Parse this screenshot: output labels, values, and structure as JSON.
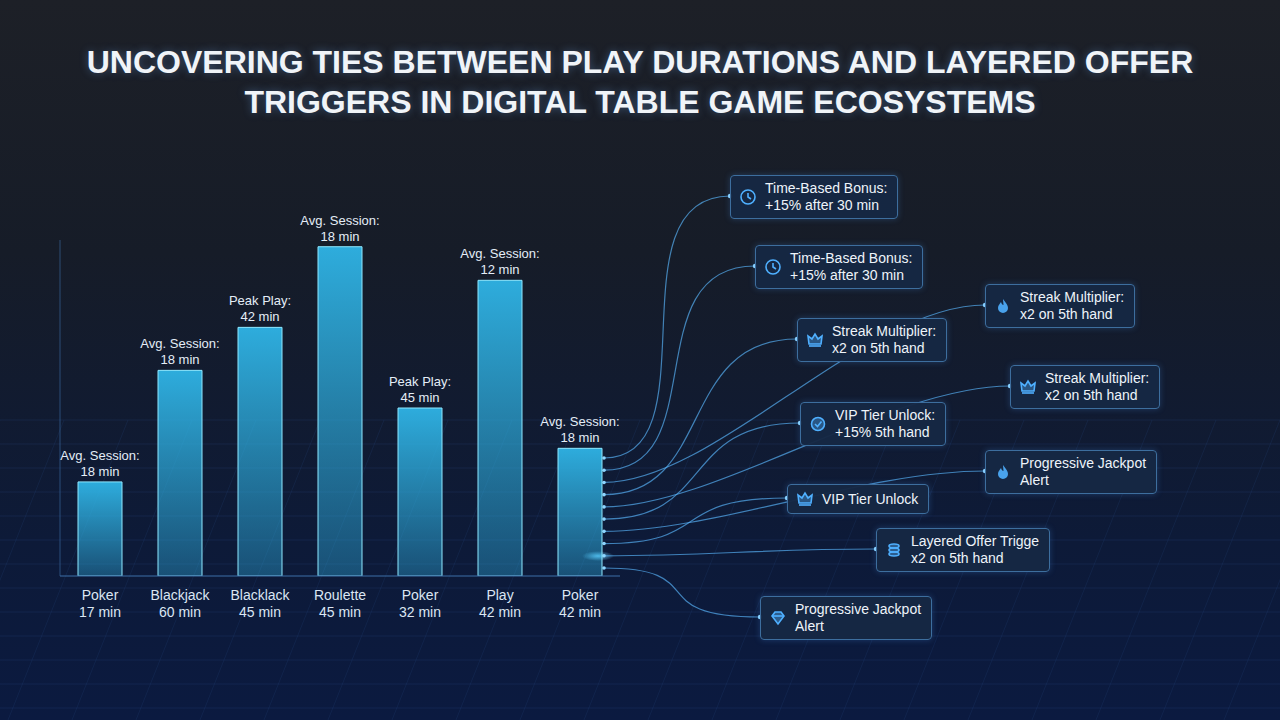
{
  "chart_data": {
    "type": "bar",
    "title": "UNCOVERING TIES BETWEEN PLAY DURATIONS AND LAYERED OFFER TRIGGERS IN DIGITAL TABLE GAME ECOSYSTEMS",
    "categories": [
      "Poker",
      "Blackjack",
      "Blacklack",
      "Roulette",
      "Poker",
      "Play",
      "Poker"
    ],
    "category_durations": [
      "17 min",
      "60 min",
      "45 min",
      "45 min",
      "32 min",
      "42 min",
      "42 min"
    ],
    "bar_labels": [
      {
        "label": "Avg. Session:",
        "value": "18 min"
      },
      {
        "label": "Avg. Session:",
        "value": "18 min"
      },
      {
        "label": "Peak Play:",
        "value": "42 min"
      },
      {
        "label": "Avg. Session:",
        "value": "18 min"
      },
      {
        "label": "Peak Play:",
        "value": "45 min"
      },
      {
        "label": "Avg. Session:",
        "value": "12 min"
      },
      {
        "label": "Avg. Session:",
        "value": "18 min"
      }
    ],
    "values": [
      70,
      153,
      185,
      245,
      125,
      220,
      95
    ],
    "color": "#2fb4e6",
    "ylim": [
      0,
      250
    ],
    "tick_labels": "x",
    "grid": false
  },
  "offers": [
    {
      "title": "Time-Based Bonus:",
      "detail": "+15% after 30 min"
    },
    {
      "title": "Time-Based Bonus:",
      "detail": "+15% after 30 min"
    },
    {
      "title": "Streak Multiplier:",
      "detail": "x2 on 5th hand"
    },
    {
      "title": "Streak Multiplier:",
      "detail": "x2 on 5th hand"
    },
    {
      "title": "Streak Multiplier:",
      "detail": "x2 on 5th hand"
    },
    {
      "title": "VIP Tier Unlock:",
      "detail": "+15% 5th hand"
    },
    {
      "title": "Progressive Jackpot",
      "detail": "Alert"
    },
    {
      "title": "VIP Tier Unlock"
    },
    {
      "title": "Layered Offer Trigge",
      "detail": "x2 on 5th hand"
    },
    {
      "title": "Progressive Jackpot",
      "detail": "Alert"
    }
  ]
}
